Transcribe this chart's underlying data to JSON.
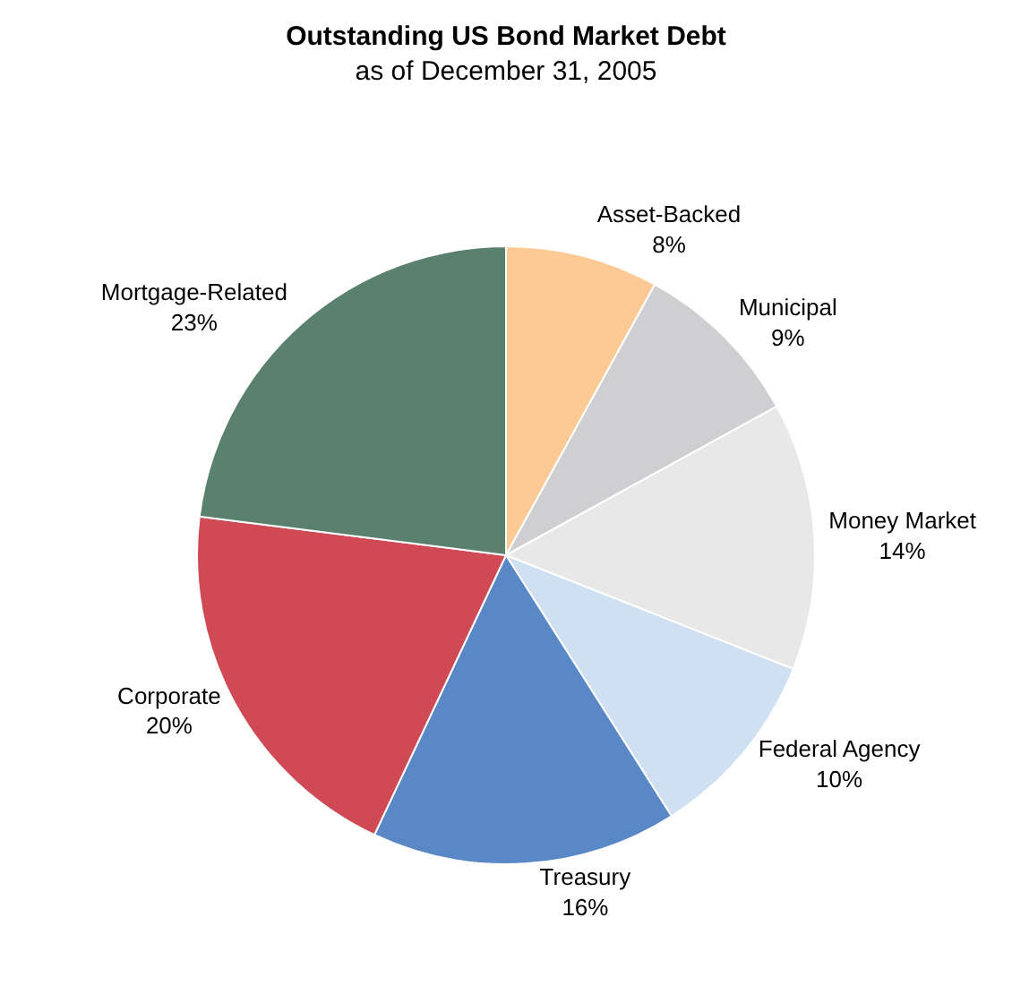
{
  "chart_data": {
    "type": "pie",
    "title": "Outstanding US Bond Market Debt",
    "subtitle": "as of December 31, 2005",
    "categories": [
      "Asset-Backed",
      "Municipal",
      "Money Market",
      "Federal Agency",
      "Treasury",
      "Corporate",
      "Mortgage-Related"
    ],
    "values": [
      8,
      9,
      14,
      10,
      16,
      20,
      23
    ],
    "colors": [
      "#fdc994",
      "#cfcfd1",
      "#e8e8e8",
      "#cfe0f2",
      "#5a87c6",
      "#cf4a54",
      "#5a816e"
    ],
    "value_labels": [
      "8%",
      "9%",
      "14%",
      "10%",
      "16%",
      "20%",
      "23%"
    ],
    "legend": false
  }
}
